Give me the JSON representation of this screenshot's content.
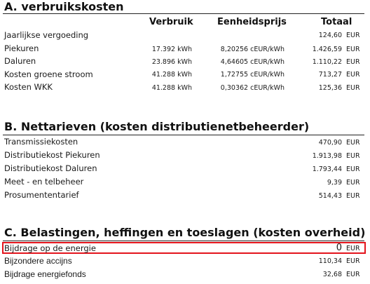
{
  "sections": {
    "a": {
      "title": "A.   verbruikskosten",
      "columns": [
        "Verbruik",
        "Eenheidsprijs",
        "Totaal"
      ],
      "rows": [
        {
          "label": "Jaarlijkse vergoeding",
          "volume": "",
          "price": "",
          "amount": "124,60",
          "currency": "EUR"
        },
        {
          "label": "Piekuren",
          "volume": "17.392 kWh",
          "price": "8,20256 cEUR/kWh",
          "amount": "1.426,59",
          "currency": "EUR"
        },
        {
          "label": "Daluren",
          "volume": "23.896 kWh",
          "price": "4,64605 cEUR/kWh",
          "amount": "1.110,22",
          "currency": "EUR"
        },
        {
          "label": "Kosten groene stroom",
          "volume": "41.288 kWh",
          "price": "1,72755 cEUR/kWh",
          "amount": "713,27",
          "currency": "EUR"
        },
        {
          "label": "Kosten WKK",
          "volume": "41.288 kWh",
          "price": "0,30362 cEUR/kWh",
          "amount": "125,36",
          "currency": "EUR"
        }
      ]
    },
    "b": {
      "title": "B. Nettarieven (kosten distributienetbeheerder)",
      "rows": [
        {
          "label": "Transmissiekosten",
          "amount": "470,90",
          "currency": "EUR"
        },
        {
          "label": "Distributiekost Piekuren",
          "amount": "1.913,98",
          "currency": "EUR"
        },
        {
          "label": "Distributiekost Daluren",
          "amount": "1.793,44",
          "currency": "EUR"
        },
        {
          "label": "Meet - en telbeheer",
          "amount": "9,39",
          "currency": "EUR"
        },
        {
          "label": "Prosumententarief",
          "amount": "514,43",
          "currency": "EUR"
        }
      ]
    },
    "c": {
      "title": "C. Belastingen, heffingen en toeslagen (kosten overheid)",
      "rows": [
        {
          "label": "Bijdrage op de energie",
          "amount": "0",
          "currency": "EUR"
        },
        {
          "label": "Bijzondere accijns",
          "amount": "110,34",
          "currency": "EUR"
        },
        {
          "label": "Bijdrage energiefonds",
          "amount": "32,68",
          "currency": "EUR"
        }
      ]
    }
  },
  "colors": {
    "highlight": "#e3141c"
  }
}
